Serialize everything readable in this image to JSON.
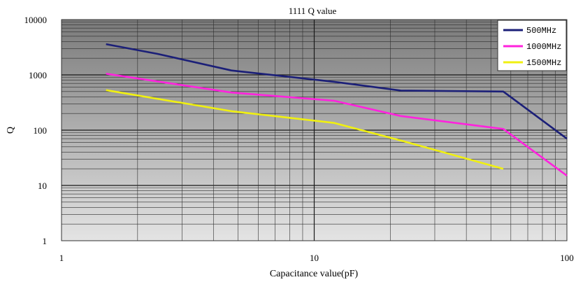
{
  "chart_data": {
    "type": "line",
    "title": "1111 Q value",
    "xlabel": "Capacitance value(pF)",
    "ylabel": "Q",
    "xscale": "log",
    "yscale": "log",
    "xlim": [
      1,
      100
    ],
    "ylim": [
      1,
      10000
    ],
    "xticks": [
      1,
      10,
      100
    ],
    "xtick_labels": [
      "1",
      "10",
      "100"
    ],
    "yticks": [
      1,
      10,
      100,
      1000,
      10000
    ],
    "ytick_labels": [
      "1",
      "10",
      "100",
      "1000",
      "10000"
    ],
    "grid": true,
    "background": "gray gradient",
    "legend_position": "top-right",
    "series": [
      {
        "name": "500MHz",
        "color": "#1b1f78",
        "x": [
          1.5,
          2.4,
          4.7,
          12,
          22,
          56,
          100
        ],
        "y": [
          3600,
          2400,
          1200,
          750,
          520,
          500,
          70
        ]
      },
      {
        "name": "1000MHz",
        "color": "#ff22dd",
        "x": [
          1.5,
          4.7,
          12,
          22,
          56,
          100
        ],
        "y": [
          1050,
          480,
          340,
          180,
          105,
          15
        ]
      },
      {
        "name": "1500MHz",
        "color": "#f0f010",
        "x": [
          1.5,
          4.7,
          12,
          22,
          56
        ],
        "y": [
          530,
          220,
          135,
          65,
          20
        ]
      }
    ]
  }
}
